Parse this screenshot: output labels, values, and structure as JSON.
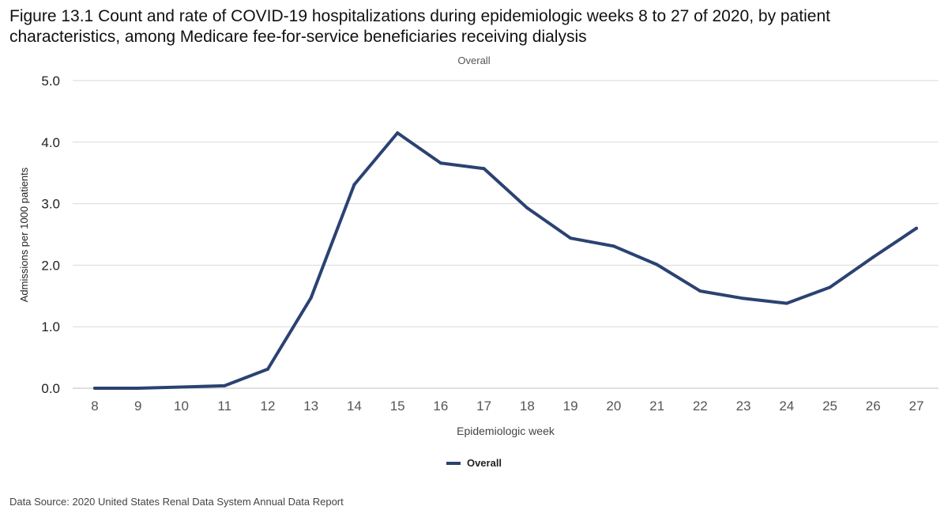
{
  "figure": {
    "title": "Figure 13.1 Count and rate of COVID-19 hospitalizations during epidemiologic weeks 8 to 27 of 2020, by patient characteristics, among Medicare fee-for-service beneficiaries receiving dialysis",
    "subtitle": "Overall",
    "source": "Data Source: 2020 United States Renal Data System Annual Data Report"
  },
  "colors": {
    "series": "#2b4272",
    "grid": "#d9d9d9",
    "axis": "#bfbfbf",
    "tick_text": "#555555"
  },
  "chart_data": {
    "type": "line",
    "xlabel": "Epidemiologic week",
    "ylabel": "Admissions per 1000 patients",
    "x": [
      8,
      9,
      10,
      11,
      12,
      13,
      14,
      15,
      16,
      17,
      18,
      19,
      20,
      21,
      22,
      23,
      24,
      25,
      26,
      27
    ],
    "ylim": [
      0,
      5
    ],
    "yticks": [
      "0.0",
      "1.0",
      "2.0",
      "3.0",
      "4.0",
      "5.0"
    ],
    "grid": true,
    "legend": "bottom-center",
    "series": [
      {
        "name": "Overall",
        "values": [
          0.0,
          0.0,
          0.02,
          0.04,
          0.31,
          1.47,
          3.31,
          4.15,
          3.66,
          3.57,
          2.93,
          2.44,
          2.31,
          2.01,
          1.58,
          1.46,
          1.38,
          1.64,
          2.13,
          2.6
        ]
      }
    ]
  }
}
